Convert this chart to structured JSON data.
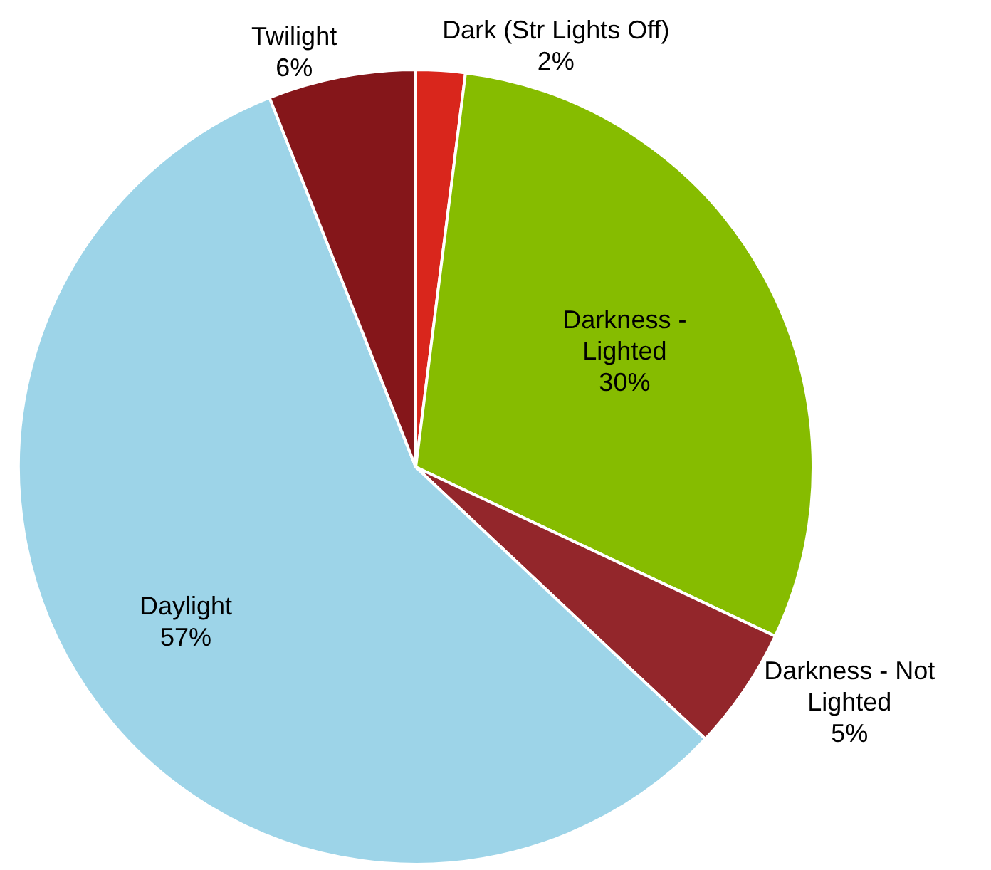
{
  "chart_data": {
    "type": "pie",
    "categories": [
      "Dark (Str Lights Off)",
      "Darkness - Lighted",
      "Darkness - Not Lighted",
      "Daylight",
      "Twilight"
    ],
    "values": [
      2,
      30,
      5,
      57,
      6
    ],
    "value_labels": [
      "2%",
      "30%",
      "5%",
      "57%",
      "6%"
    ],
    "colors": [
      "#d9261c",
      "#86bc00",
      "#93262b",
      "#9dd4e8",
      "#85161a"
    ]
  }
}
